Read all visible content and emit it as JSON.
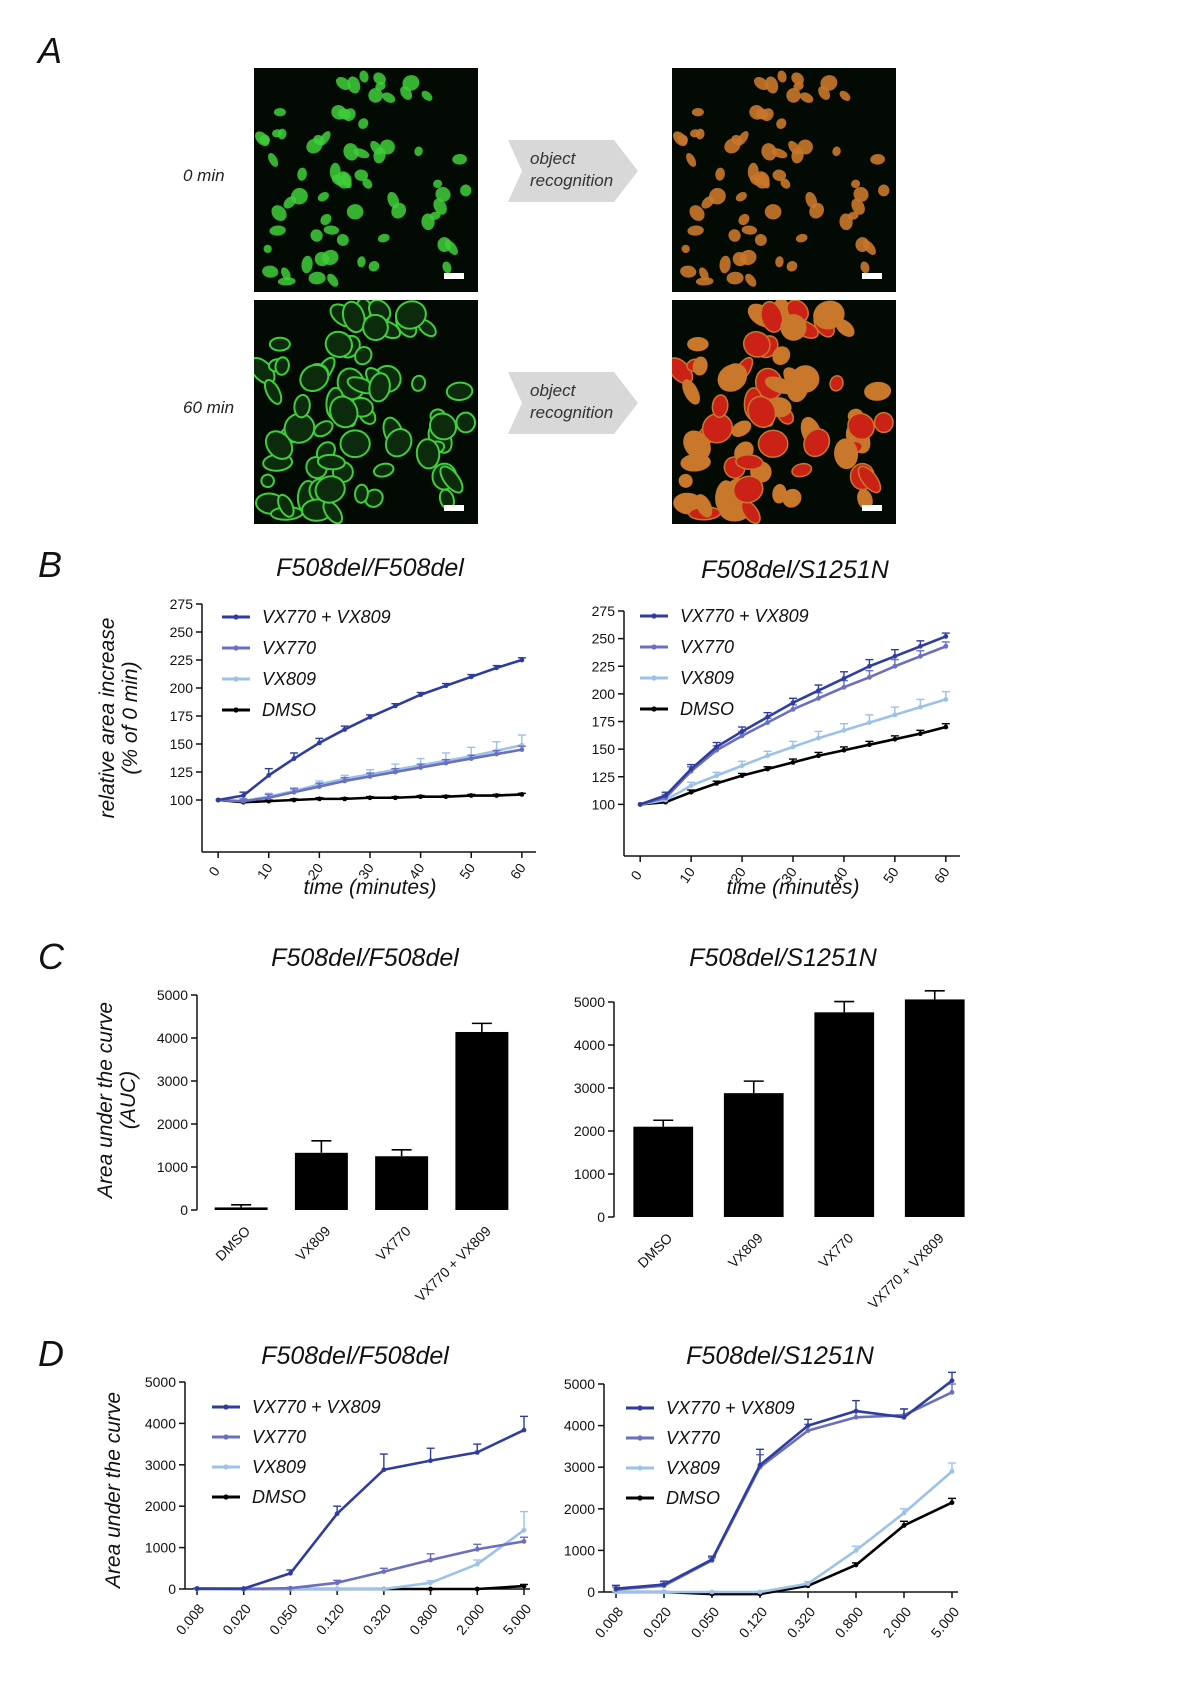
{
  "panel_letters": {
    "a": "A",
    "b": "B",
    "c": "C",
    "d": "D"
  },
  "panel_a": {
    "time_labels": [
      "0 min",
      "60 min"
    ],
    "arrow_text": [
      "object",
      "recognition"
    ],
    "colors": {
      "background": "#030a03",
      "fluorescence": "#3fcf3a",
      "recognized_fill": "#c9772b",
      "swollen_fill": "#cc2116"
    }
  },
  "series_colors": {
    "VX770 + VX809": "#2f3e9e",
    "VX770": "#6a6fc0",
    "VX809": "#9cc2ea",
    "DMSO": "#000000"
  },
  "chart_data": [
    {
      "id": "B1",
      "type": "line",
      "title": "F508del/F508del",
      "xlabel": "time (minutes)",
      "ylabel": [
        "relative area increase",
        "(% of 0 min)"
      ],
      "x": [
        0,
        5,
        10,
        15,
        20,
        25,
        30,
        35,
        40,
        45,
        50,
        55,
        60
      ],
      "xticks": [
        0,
        10,
        20,
        30,
        40,
        50,
        60
      ],
      "yticks": [
        100,
        125,
        150,
        175,
        200,
        225,
        250,
        275
      ],
      "ylim": [
        75,
        275
      ],
      "xlim": [
        -2,
        62
      ],
      "series": [
        {
          "name": "VX770 + VX809",
          "values": [
            100,
            104,
            122,
            137,
            151,
            163,
            174,
            184,
            194,
            202,
            210,
            218,
            225
          ],
          "err": [
            0,
            3,
            6,
            5,
            4,
            3,
            2,
            2,
            2,
            2,
            2,
            2,
            2
          ]
        },
        {
          "name": "VX770",
          "values": [
            100,
            99,
            102,
            107,
            112,
            117,
            121,
            125,
            129,
            133,
            137,
            141,
            145
          ],
          "err": [
            0,
            2,
            3,
            3,
            3,
            3,
            3,
            3,
            3,
            3,
            3,
            3,
            3
          ]
        },
        {
          "name": "VX809",
          "values": [
            100,
            99,
            103,
            108,
            114,
            119,
            123,
            127,
            131,
            135,
            139,
            144,
            149
          ],
          "err": [
            0,
            2,
            3,
            3,
            3,
            3,
            4,
            5,
            6,
            7,
            8,
            8,
            9
          ]
        },
        {
          "name": "DMSO",
          "values": [
            100,
            98,
            99,
            100,
            101,
            101,
            102,
            102,
            103,
            103,
            104,
            104,
            105
          ],
          "err": [
            0,
            1,
            1,
            1,
            1,
            1,
            1,
            1,
            1,
            1,
            1,
            1,
            1
          ]
        }
      ]
    },
    {
      "id": "B2",
      "type": "line",
      "title": "F508del/S1251N",
      "xlabel": "time (minutes)",
      "ylabel": [],
      "x": [
        0,
        5,
        10,
        15,
        20,
        25,
        30,
        35,
        40,
        45,
        50,
        55,
        60
      ],
      "xticks": [
        0,
        10,
        20,
        30,
        40,
        50,
        60
      ],
      "yticks": [
        100,
        125,
        150,
        175,
        200,
        225,
        250,
        275
      ],
      "ylim": [
        75,
        275
      ],
      "xlim": [
        -2,
        62
      ],
      "series": [
        {
          "name": "VX770 + VX809",
          "values": [
            100,
            108,
            132,
            152,
            166,
            179,
            192,
            203,
            214,
            225,
            234,
            243,
            252
          ],
          "err": [
            0,
            3,
            4,
            4,
            4,
            4,
            4,
            5,
            6,
            6,
            6,
            5,
            3
          ]
        },
        {
          "name": "VX770",
          "values": [
            100,
            106,
            130,
            149,
            162,
            174,
            186,
            196,
            206,
            215,
            225,
            234,
            243
          ],
          "err": [
            0,
            3,
            4,
            4,
            4,
            4,
            4,
            5,
            6,
            6,
            6,
            5,
            4
          ]
        },
        {
          "name": "VX809",
          "values": [
            100,
            104,
            117,
            126,
            135,
            144,
            152,
            160,
            167,
            174,
            181,
            188,
            195
          ],
          "err": [
            0,
            2,
            3,
            3,
            4,
            4,
            5,
            6,
            6,
            7,
            7,
            7,
            7
          ]
        },
        {
          "name": "DMSO",
          "values": [
            100,
            102,
            111,
            119,
            126,
            132,
            138,
            144,
            149,
            154,
            159,
            164,
            170
          ],
          "err": [
            0,
            1,
            2,
            2,
            2,
            2,
            3,
            3,
            3,
            3,
            3,
            3,
            3
          ]
        }
      ]
    },
    {
      "id": "C1",
      "type": "bar",
      "title": "F508del/F508del",
      "ylabel": [
        "Area under the curve",
        "(AUC)"
      ],
      "categories": [
        "DMSO",
        "VX809",
        "VX770",
        "VX770 + VX809"
      ],
      "values": [
        60,
        1330,
        1250,
        4140
      ],
      "err": [
        60,
        280,
        150,
        200
      ],
      "yticks": [
        0,
        1000,
        2000,
        3000,
        4000,
        5000
      ],
      "ylim": [
        0,
        5300
      ]
    },
    {
      "id": "C2",
      "type": "bar",
      "title": "F508del/S1251N",
      "ylabel": [],
      "categories": [
        "DMSO",
        "VX809",
        "VX770",
        "VX770 + VX809"
      ],
      "values": [
        2100,
        2880,
        4760,
        5060
      ],
      "err": [
        150,
        280,
        250,
        200
      ],
      "yticks": [
        0,
        1000,
        2000,
        3000,
        4000,
        5000
      ],
      "ylim": [
        0,
        5300
      ]
    },
    {
      "id": "D1",
      "type": "line",
      "title": "F508del/F508del",
      "ylabel": [
        "Area under the curve"
      ],
      "xscale": "log",
      "x": [
        0.008,
        0.02,
        0.05,
        0.12,
        0.32,
        0.8,
        2.0,
        5.0
      ],
      "xticklabels": [
        "0.008",
        "0.020",
        "0.050",
        "0.120",
        "0.320",
        "0.800",
        "2.000",
        "5.000"
      ],
      "yticks": [
        0,
        1000,
        2000,
        3000,
        4000,
        5000
      ],
      "ylim": [
        0,
        5300
      ],
      "series": [
        {
          "name": "VX770 + VX809",
          "values": [
            10,
            10,
            380,
            1820,
            2880,
            3100,
            3300,
            3840
          ],
          "err": [
            10,
            10,
            80,
            180,
            380,
            300,
            200,
            330
          ]
        },
        {
          "name": "VX770",
          "values": [
            10,
            0,
            20,
            150,
            420,
            700,
            960,
            1150
          ],
          "err": [
            10,
            10,
            20,
            60,
            80,
            150,
            120,
            100
          ]
        },
        {
          "name": "VX809",
          "values": [
            0,
            0,
            0,
            0,
            0,
            150,
            600,
            1420
          ],
          "err": [
            10,
            10,
            10,
            10,
            10,
            50,
            100,
            450
          ]
        },
        {
          "name": "DMSO",
          "values": [
            0,
            0,
            0,
            0,
            0,
            0,
            0,
            70
          ],
          "err": [
            0,
            0,
            0,
            0,
            0,
            0,
            0,
            40
          ]
        }
      ]
    },
    {
      "id": "D2",
      "type": "line",
      "title": "F508del/S1251N",
      "ylabel": [],
      "xscale": "log",
      "x": [
        0.008,
        0.02,
        0.05,
        0.12,
        0.32,
        0.8,
        2.0,
        5.0
      ],
      "xticklabels": [
        "0.008",
        "0.020",
        "0.050",
        "0.120",
        "0.320",
        "0.800",
        "2.000",
        "5.000"
      ],
      "yticks": [
        0,
        1000,
        2000,
        3000,
        4000,
        5000
      ],
      "ylim": [
        0,
        5300
      ],
      "series": [
        {
          "name": "VX770 + VX809",
          "values": [
            80,
            180,
            780,
            3050,
            4000,
            4350,
            4200,
            5080
          ],
          "err": [
            80,
            80,
            80,
            380,
            150,
            250,
            200,
            200
          ]
        },
        {
          "name": "VX770",
          "values": [
            60,
            150,
            760,
            3000,
            3880,
            4200,
            4250,
            4800
          ],
          "err": [
            60,
            60,
            60,
            300,
            150,
            150,
            150,
            200
          ]
        },
        {
          "name": "VX809",
          "values": [
            0,
            0,
            0,
            0,
            200,
            1000,
            1900,
            2900
          ],
          "err": [
            10,
            10,
            10,
            10,
            50,
            100,
            100,
            200
          ]
        },
        {
          "name": "DMSO",
          "values": [
            0,
            0,
            -50,
            -50,
            150,
            650,
            1600,
            2150
          ],
          "err": [
            10,
            10,
            10,
            10,
            30,
            50,
            100,
            100
          ]
        }
      ]
    }
  ]
}
